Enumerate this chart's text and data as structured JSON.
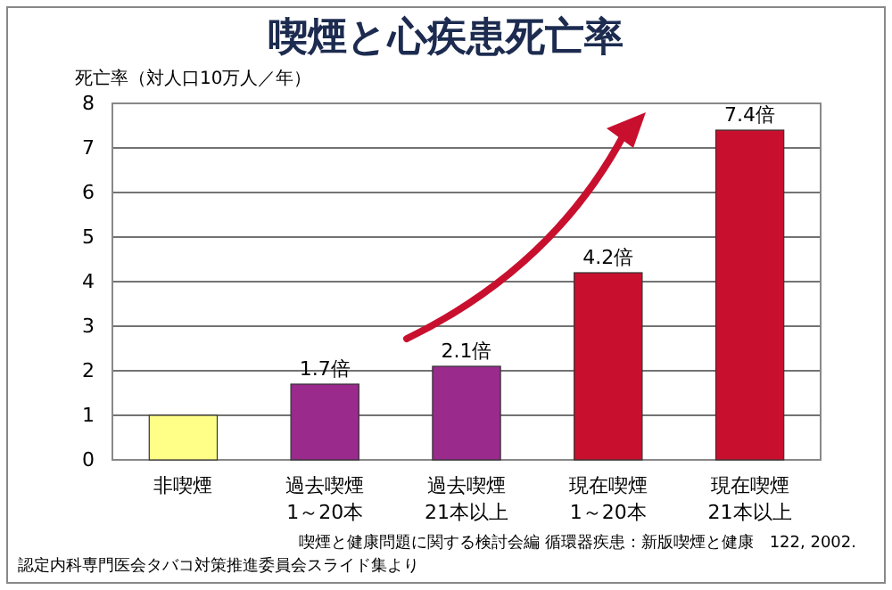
{
  "chart_data": {
    "type": "bar",
    "title": "喫煙と心疾患死亡率",
    "ylabel": "死亡率（対人口10万人／年）",
    "categories": [
      "非喫煙",
      "過去喫煙\n1～20本",
      "過去喫煙\n21本以上",
      "現在喫煙\n1～20本",
      "現在喫煙\n21本以上"
    ],
    "values": [
      1,
      1.7,
      2.1,
      4.2,
      7.4
    ],
    "colors": [
      "#ffff88",
      "#9a2a8c",
      "#9a2a8c",
      "#c8102e",
      "#c8102e"
    ],
    "value_labels": [
      null,
      "1.7倍",
      "2.1倍",
      "4.2倍",
      "7.4倍"
    ],
    "ylim": [
      0,
      8
    ],
    "yticks": [
      0,
      1,
      2,
      3,
      4,
      5,
      6,
      7,
      8
    ],
    "grid": "y",
    "annotations": [
      "喫煙と健康問題に関する検討会編 循環器疾患：新版喫煙と健康　122, 2002.",
      "認定内科専門医会タバコ対策推進委員会スライド集より"
    ]
  }
}
